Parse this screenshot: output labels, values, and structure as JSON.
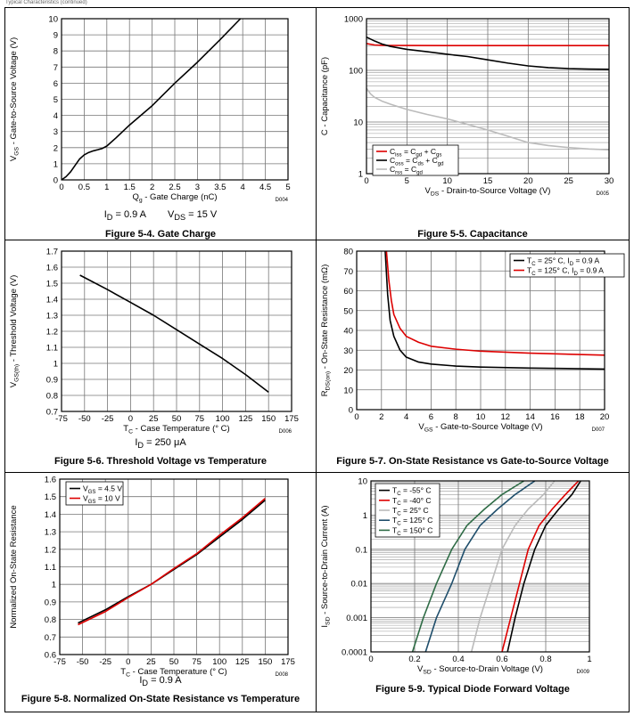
{
  "header": {
    "text": "Typical Characteristics (continued)"
  },
  "charts": [
    {
      "id": "gate-charge",
      "type": "line",
      "title": "Figure 5-4. Gate Charge",
      "xlabel": "Q<sub>g</sub> - Gate Charge (nC)",
      "ylabel": "V<sub>GS</sub> - Gate-to-Source Voltage (V)",
      "xlim": [
        0,
        5
      ],
      "ylim": [
        0,
        10
      ],
      "xscale": "linear",
      "yscale": "linear",
      "xticks": [
        0,
        0.5,
        1,
        1.5,
        2,
        2.5,
        3,
        3.5,
        4,
        4.5,
        5
      ],
      "yticks": [
        0,
        1,
        2,
        3,
        4,
        5,
        6,
        7,
        8,
        9,
        10
      ],
      "code": "D004",
      "condition": {
        "items": [
          "I<sub>D</sub> = 0.9 A",
          "V<sub>DS</sub> = 15 V"
        ]
      },
      "series": [
        {
          "name": "",
          "color": "#000000",
          "x": [
            0,
            0.1,
            0.2,
            0.3,
            0.4,
            0.5,
            0.6,
            0.7,
            0.8,
            0.9,
            1.0,
            1.2,
            1.5,
            2.0,
            2.5,
            3.0,
            3.5,
            3.95
          ],
          "y": [
            0,
            0.2,
            0.5,
            0.9,
            1.3,
            1.55,
            1.7,
            1.8,
            1.87,
            1.95,
            2.1,
            2.6,
            3.4,
            4.6,
            6.0,
            7.3,
            8.7,
            10.0
          ]
        }
      ]
    },
    {
      "id": "capacitance",
      "type": "line",
      "title": "Figure 5-5. Capacitance",
      "xlabel": "V<sub>DS</sub> - Drain-to-Source Voltage (V)",
      "ylabel": "C - Capacitance (pF)",
      "xlim": [
        0,
        30
      ],
      "ylim": [
        1,
        1000
      ],
      "xscale": "linear",
      "yscale": "log",
      "xticks": [
        0,
        5,
        10,
        15,
        20,
        25,
        30
      ],
      "yticks": [
        1,
        10,
        100,
        1000
      ],
      "code": "D005",
      "legend": {
        "position": "bottom-left"
      },
      "series": [
        {
          "name": "C<sub>iss</sub> = C<sub>gd</sub> + C<sub>gs</sub>",
          "color": "#dd0000",
          "x": [
            0,
            1,
            2,
            5,
            10,
            15,
            20,
            25,
            30
          ],
          "y": [
            330,
            310,
            305,
            303,
            302,
            302,
            302,
            302,
            302
          ]
        },
        {
          "name": "C<sub>oss</sub> = C<sub>ds</sub> + C<sub>gd</sub>",
          "color": "#000000",
          "x": [
            0,
            1,
            2,
            3,
            5,
            7.5,
            10,
            12.5,
            15,
            17.5,
            20,
            22.5,
            25,
            27.5,
            30
          ],
          "y": [
            440,
            370,
            320,
            290,
            255,
            230,
            205,
            185,
            160,
            138,
            122,
            113,
            108,
            106,
            105
          ]
        },
        {
          "name": "C<sub>rss</sub> = C<sub>gd</sub>",
          "color": "#bbbbbb",
          "x": [
            0,
            0.5,
            1,
            2,
            3,
            5,
            7.5,
            10,
            12.5,
            15,
            17.5,
            20,
            22.5,
            25,
            27.5,
            30
          ],
          "y": [
            45,
            35,
            30,
            25,
            22,
            17.5,
            14,
            11.5,
            9,
            7,
            5.3,
            4,
            3.5,
            3.2,
            3.0,
            2.9
          ]
        }
      ]
    },
    {
      "id": "threshold-voltage",
      "type": "line",
      "title": "Figure 5-6. Threshold Voltage vs Temperature",
      "xlabel": "T<sub>C</sub> - Case Temperature (° C)",
      "ylabel": "V<sub>GS(th)</sub> - Threshold Voltage (V)",
      "xlim": [
        -75,
        175
      ],
      "ylim": [
        0.7,
        1.7
      ],
      "xscale": "linear",
      "yscale": "linear",
      "xticks": [
        -75,
        -50,
        -25,
        0,
        25,
        50,
        75,
        100,
        125,
        150,
        175
      ],
      "yticks": [
        0.7,
        0.8,
        0.9,
        1,
        1.1,
        1.2,
        1.3,
        1.4,
        1.5,
        1.6,
        1.7
      ],
      "code": "D006",
      "condition": {
        "items": [
          "I<sub>D</sub> = 250 μA"
        ]
      },
      "series": [
        {
          "name": "",
          "color": "#000000",
          "x": [
            -55,
            -25,
            0,
            25,
            50,
            75,
            100,
            125,
            150
          ],
          "y": [
            1.55,
            1.46,
            1.38,
            1.3,
            1.21,
            1.12,
            1.03,
            0.93,
            0.82
          ]
        }
      ]
    },
    {
      "id": "on-state-resistance",
      "type": "line",
      "title": "Figure 5-7. On-State Resistance vs Gate-to-Source Voltage",
      "xlabel": "V<sub>GS</sub> - Gate-to-Source Voltage (V)",
      "ylabel": "R<sub>DS(on)</sub> - On-State Resistance (mΩ)",
      "xlim": [
        0,
        20
      ],
      "ylim": [
        0,
        80
      ],
      "xscale": "linear",
      "yscale": "linear",
      "xticks": [
        0,
        2,
        4,
        6,
        8,
        10,
        12,
        14,
        16,
        18,
        20
      ],
      "yticks": [
        0,
        10,
        20,
        30,
        40,
        50,
        60,
        70,
        80
      ],
      "code": "D007",
      "legend": {
        "position": "top-right"
      },
      "series": [
        {
          "name": "T<sub>C</sub> = 25° C, I<sub>D</sub> = 0.9 A",
          "color": "#000000",
          "x": [
            2.3,
            2.5,
            2.7,
            3.0,
            3.5,
            4.0,
            5.0,
            6.0,
            8.0,
            10.0,
            14.0,
            20.0
          ],
          "y": [
            80,
            58,
            45,
            37,
            30,
            26.5,
            24,
            23,
            22,
            21.5,
            21,
            20.5
          ]
        },
        {
          "name": "T<sub>C</sub> = 125° C, I<sub>D</sub> = 0.9 A",
          "color": "#dd0000",
          "x": [
            2.4,
            2.6,
            2.8,
            3.0,
            3.5,
            4.0,
            5.0,
            6.0,
            8.0,
            10.0,
            14.0,
            20.0
          ],
          "y": [
            80,
            65,
            55,
            48,
            41,
            37,
            34,
            32,
            30.5,
            29.5,
            28.5,
            27.5
          ]
        }
      ]
    },
    {
      "id": "normalized-resistance",
      "type": "line",
      "title": "Figure 5-8. Normalized On-State Resistance vs Temperature",
      "xlabel": "T<sub>C</sub> - Case Temperature (° C)",
      "ylabel": "Normalized On-State Resistance",
      "xlim": [
        -75,
        175
      ],
      "ylim": [
        0.6,
        1.6
      ],
      "xscale": "linear",
      "yscale": "linear",
      "xticks": [
        -75,
        -50,
        -25,
        0,
        25,
        50,
        75,
        100,
        125,
        150,
        175
      ],
      "yticks": [
        0.6,
        0.7,
        0.8,
        0.9,
        1,
        1.1,
        1.2,
        1.3,
        1.4,
        1.5,
        1.6
      ],
      "code": "D008",
      "legend": {
        "position": "top-left"
      },
      "condition": {
        "items": [
          "I<sub>D</sub> = 0.9 A"
        ]
      },
      "series": [
        {
          "name": "V<sub>GS</sub> = 4.5 V",
          "color": "#000000",
          "x": [
            -55,
            -25,
            0,
            25,
            50,
            75,
            100,
            125,
            150
          ],
          "y": [
            0.78,
            0.855,
            0.93,
            1.0,
            1.085,
            1.17,
            1.27,
            1.37,
            1.48
          ]
        },
        {
          "name": "V<sub>GS</sub> = 10 V",
          "color": "#dd0000",
          "x": [
            -55,
            -25,
            0,
            25,
            50,
            75,
            100,
            125,
            150
          ],
          "y": [
            0.77,
            0.845,
            0.925,
            1.0,
            1.09,
            1.175,
            1.28,
            1.38,
            1.49
          ]
        }
      ]
    },
    {
      "id": "diode-forward-voltage",
      "type": "line",
      "title": "Figure 5-9. Typical Diode Forward Voltage",
      "xlabel": "V<sub>SD</sub> - Source-to-Drain Voltage (V)",
      "ylabel": "I<sub>SD</sub> - Source-to-Drain Current (A)",
      "xlim": [
        0,
        1
      ],
      "ylim": [
        0.0001,
        10
      ],
      "xscale": "linear",
      "yscale": "log",
      "xticks": [
        0,
        0.2,
        0.4,
        0.6,
        0.8,
        1
      ],
      "yticks": [
        0.0001,
        0.001,
        0.01,
        0.1,
        1,
        10
      ],
      "code": "D009",
      "legend": {
        "position": "top-left"
      },
      "series": [
        {
          "name": "T<sub>C</sub> = -55° C",
          "color": "#000000",
          "x": [
            0.625,
            0.66,
            0.7,
            0.75,
            0.8,
            0.86,
            0.92,
            0.96
          ],
          "y": [
            0.0001,
            0.001,
            0.01,
            0.1,
            0.5,
            1.5,
            4,
            10
          ]
        },
        {
          "name": "T<sub>C</sub> = -40° C",
          "color": "#dd0000",
          "x": [
            0.6,
            0.64,
            0.68,
            0.72,
            0.77,
            0.83,
            0.89,
            0.95
          ],
          "y": [
            0.0001,
            0.001,
            0.01,
            0.1,
            0.5,
            1.5,
            4,
            10
          ]
        },
        {
          "name": "T<sub>C</sub> = 25° C",
          "color": "#bbbbbb",
          "x": [
            0.46,
            0.5,
            0.55,
            0.6,
            0.66,
            0.72,
            0.79,
            0.84
          ],
          "y": [
            0.0001,
            0.001,
            0.01,
            0.1,
            0.5,
            1.5,
            4,
            10
          ]
        },
        {
          "name": "T<sub>C</sub> = 125° C",
          "color": "#1f4e6b",
          "x": [
            0.25,
            0.3,
            0.37,
            0.43,
            0.5,
            0.58,
            0.66,
            0.75
          ],
          "y": [
            0.0001,
            0.001,
            0.01,
            0.1,
            0.5,
            1.5,
            4,
            10
          ]
        },
        {
          "name": "T<sub>C</sub> = 150° C",
          "color": "#2e6b45",
          "x": [
            0.19,
            0.24,
            0.3,
            0.37,
            0.44,
            0.52,
            0.6,
            0.7
          ],
          "y": [
            0.0001,
            0.001,
            0.01,
            0.1,
            0.5,
            1.5,
            4,
            10
          ]
        }
      ]
    }
  ]
}
